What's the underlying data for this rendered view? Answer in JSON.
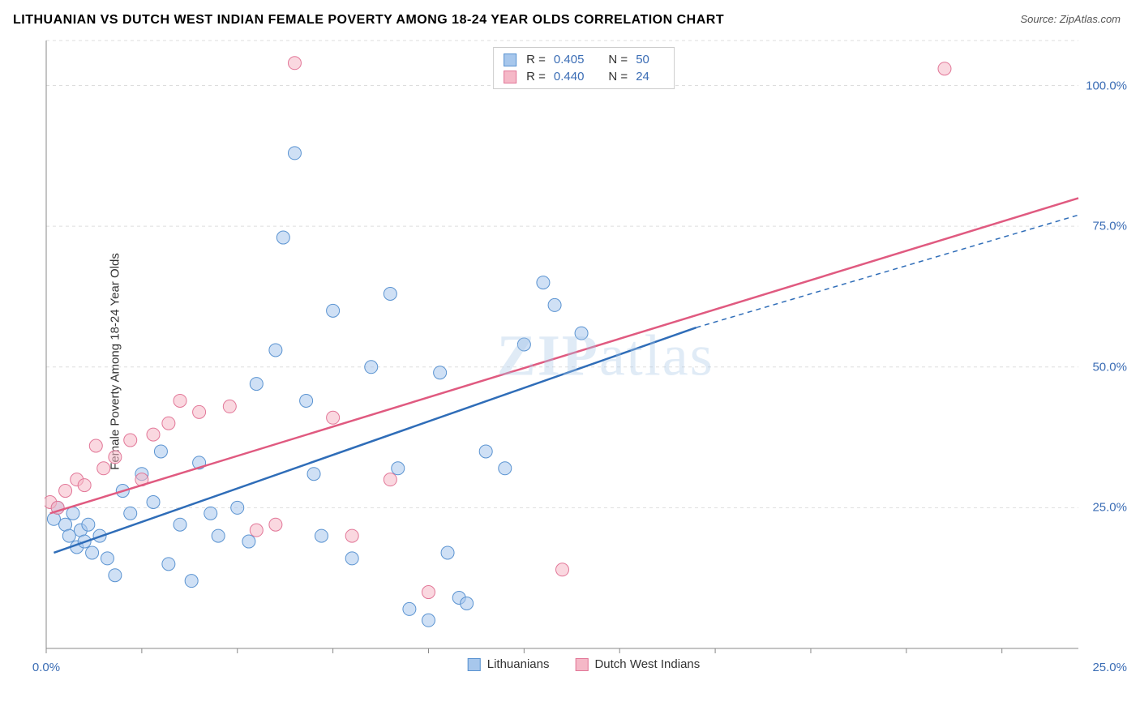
{
  "title": "LITHUANIAN VS DUTCH WEST INDIAN FEMALE POVERTY AMONG 18-24 YEAR OLDS CORRELATION CHART",
  "source": "Source: ZipAtlas.com",
  "y_axis_label": "Female Poverty Among 18-24 Year Olds",
  "watermark": {
    "part1": "ZIP",
    "part2": "atlas"
  },
  "chart": {
    "type": "scatter",
    "xlim": [
      0,
      27
    ],
    "ylim": [
      0,
      108
    ],
    "x_ticks": [
      0,
      2.5,
      5,
      7.5,
      10,
      12.5,
      15,
      17.5,
      20,
      22.5,
      25
    ],
    "y_ticks": [
      25,
      50,
      75,
      100
    ],
    "y_tick_labels": [
      "25.0%",
      "50.0%",
      "75.0%",
      "100.0%"
    ],
    "x_origin_label": "0.0%",
    "x_end_label": "25.0%",
    "grid_color": "#dddddd",
    "axis_color": "#888888",
    "background": "#ffffff",
    "marker_radius": 8,
    "marker_opacity": 0.55,
    "line_width": 2.5,
    "series": [
      {
        "name": "Lithuanians",
        "color_fill": "#a7c7ec",
        "color_stroke": "#5a93d1",
        "line_color": "#2f6db8",
        "r": "0.405",
        "n": "50",
        "trend": {
          "x1": 0.2,
          "y1": 17,
          "x2": 17,
          "y2": 57,
          "dash_x2": 27,
          "dash_y2": 77
        },
        "points": [
          [
            0.2,
            23
          ],
          [
            0.3,
            25
          ],
          [
            0.5,
            22
          ],
          [
            0.6,
            20
          ],
          [
            0.7,
            24
          ],
          [
            0.8,
            18
          ],
          [
            0.9,
            21
          ],
          [
            1.0,
            19
          ],
          [
            1.1,
            22
          ],
          [
            1.2,
            17
          ],
          [
            1.4,
            20
          ],
          [
            1.6,
            16
          ],
          [
            1.8,
            13
          ],
          [
            2.0,
            28
          ],
          [
            2.2,
            24
          ],
          [
            2.5,
            31
          ],
          [
            2.8,
            26
          ],
          [
            3.0,
            35
          ],
          [
            3.2,
            15
          ],
          [
            3.5,
            22
          ],
          [
            3.8,
            12
          ],
          [
            4.0,
            33
          ],
          [
            4.3,
            24
          ],
          [
            4.5,
            20
          ],
          [
            5.0,
            25
          ],
          [
            5.3,
            19
          ],
          [
            5.5,
            47
          ],
          [
            6.0,
            53
          ],
          [
            6.2,
            73
          ],
          [
            6.5,
            88
          ],
          [
            6.8,
            44
          ],
          [
            7.0,
            31
          ],
          [
            7.2,
            20
          ],
          [
            7.5,
            60
          ],
          [
            8.0,
            16
          ],
          [
            8.5,
            50
          ],
          [
            9.0,
            63
          ],
          [
            9.2,
            32
          ],
          [
            9.5,
            7
          ],
          [
            10.0,
            5
          ],
          [
            10.3,
            49
          ],
          [
            10.5,
            17
          ],
          [
            10.8,
            9
          ],
          [
            11.0,
            8
          ],
          [
            11.5,
            35
          ],
          [
            12.0,
            32
          ],
          [
            12.5,
            54
          ],
          [
            13.0,
            65
          ],
          [
            13.3,
            61
          ],
          [
            14.0,
            56
          ]
        ]
      },
      {
        "name": "Dutch West Indians",
        "color_fill": "#f5b8c7",
        "color_stroke": "#e27798",
        "line_color": "#e05a80",
        "r": "0.440",
        "n": "24",
        "trend": {
          "x1": 0.1,
          "y1": 24,
          "x2": 27,
          "y2": 80
        },
        "points": [
          [
            0.1,
            26
          ],
          [
            0.3,
            25
          ],
          [
            0.5,
            28
          ],
          [
            0.8,
            30
          ],
          [
            1.0,
            29
          ],
          [
            1.3,
            36
          ],
          [
            1.5,
            32
          ],
          [
            1.8,
            34
          ],
          [
            2.2,
            37
          ],
          [
            2.5,
            30
          ],
          [
            2.8,
            38
          ],
          [
            3.2,
            40
          ],
          [
            3.5,
            44
          ],
          [
            4.0,
            42
          ],
          [
            4.8,
            43
          ],
          [
            5.5,
            21
          ],
          [
            6.0,
            22
          ],
          [
            6.5,
            104
          ],
          [
            7.5,
            41
          ],
          [
            8.0,
            20
          ],
          [
            9.0,
            30
          ],
          [
            10.0,
            10
          ],
          [
            13.5,
            14
          ],
          [
            23.5,
            103
          ]
        ]
      }
    ]
  },
  "legend_top": {
    "r_label": "R =",
    "n_label": "N ="
  },
  "legend_bottom": [
    {
      "label": "Lithuanians",
      "fill": "#a7c7ec",
      "stroke": "#5a93d1"
    },
    {
      "label": "Dutch West Indians",
      "fill": "#f5b8c7",
      "stroke": "#e27798"
    }
  ]
}
